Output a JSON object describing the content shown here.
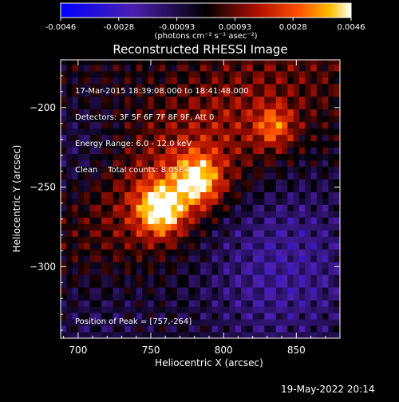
{
  "chart_data": {
    "type": "heatmap",
    "title": "Reconstructed RHESSI Image",
    "xlabel": "Heliocentric X (arcsec)",
    "ylabel": "Heliocentric Y (arcsec)",
    "xlim": [
      688,
      880
    ],
    "ylim": [
      -345,
      -170
    ],
    "x_ticks": [
      700,
      750,
      800,
      850
    ],
    "y_ticks": [
      -200,
      -250,
      -300
    ],
    "colorbar": {
      "ticks": [
        "-0.0046",
        "-0.0028",
        "-0.00093",
        "0.00093",
        "0.0028",
        "0.0046"
      ],
      "min": -0.0046,
      "max": 0.0046,
      "units": "(photons cm⁻² s⁻¹ asec⁻²)"
    },
    "info_lines": [
      "17-Mar-2015 18:39:08.000 to 18:41:48.000",
      "Detectors: 3F 5F 6F 7F 8F 9F, Att 0",
      "Energy Range: 6.0 - 12.0 keV",
      "Clean    Total counts: 8.05E+03"
    ],
    "peak_label": "Position of Peak = [757,-264]",
    "sources": [
      {
        "x": 757,
        "y": -264,
        "value": 0.0046
      },
      {
        "x": 782,
        "y": -246,
        "value": 0.004
      },
      {
        "x": 835,
        "y": -212,
        "value": 0.0025
      }
    ]
  },
  "footer": {
    "date": "19-May-2022 20:14"
  }
}
